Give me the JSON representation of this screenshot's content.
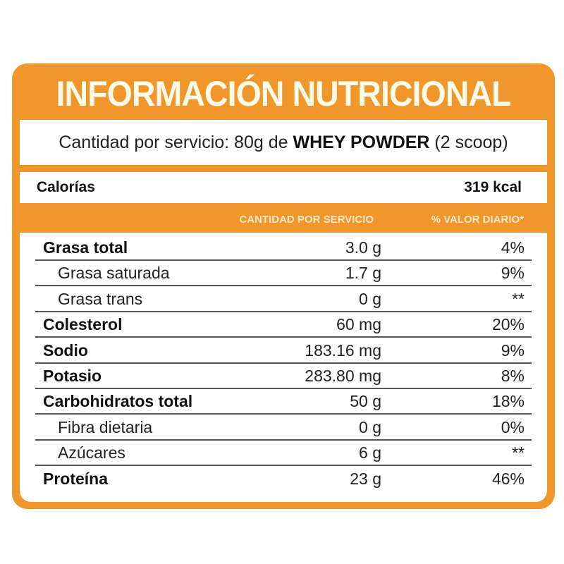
{
  "title": "INFORMACIÓN NUTRICIONAL",
  "serving": {
    "prefix": "Cantidad por servicio: 80g de ",
    "product": "WHEY POWDER",
    "suffix": " (2 scoop)"
  },
  "calories": {
    "label": "Calorías",
    "value": "319 kcal"
  },
  "headers": {
    "amount": "CANTIDAD POR SERVICIO",
    "daily": "% VALOR DIARIO*"
  },
  "colors": {
    "accent": "#f0962b"
  },
  "rows": [
    {
      "name": "Grasa total",
      "amount": "3.0 g",
      "daily": "4%"
    },
    {
      "name": "Grasa saturada",
      "amount": "1.7 g",
      "daily": "9%"
    },
    {
      "name": "Grasa trans",
      "amount": "0 g",
      "daily": "**"
    },
    {
      "name": "Colesterol",
      "amount": "60 mg",
      "daily": "20%"
    },
    {
      "name": "Sodio",
      "amount": "183.16 mg",
      "daily": "9%"
    },
    {
      "name": "Potasio",
      "amount": "283.80 mg",
      "daily": "8%"
    },
    {
      "name": "Carbohidratos total",
      "amount": "50 g",
      "daily": "18%"
    },
    {
      "name": "Fibra dietaria",
      "amount": "0 g",
      "daily": "0%"
    },
    {
      "name": "Azúcares",
      "amount": "6 g",
      "daily": "**"
    },
    {
      "name": "Proteína",
      "amount": "23 g",
      "daily": "46%"
    }
  ]
}
